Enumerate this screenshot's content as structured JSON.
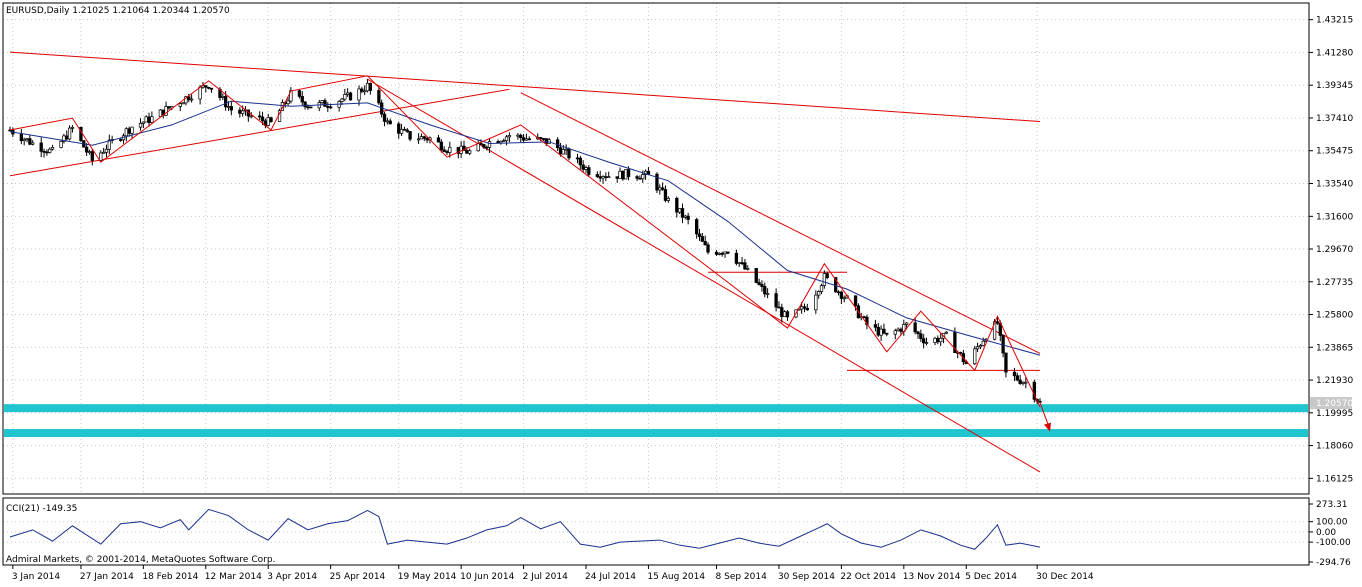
{
  "header": {
    "title": "EURUSD,Daily  1.21025 1.21064 1.20344 1.20570"
  },
  "price_axis": {
    "ticks": [
      "1.43215",
      "1.41280",
      "1.39345",
      "1.37410",
      "1.35475",
      "1.33540",
      "1.31600",
      "1.29670",
      "1.27735",
      "1.25800",
      "1.23865",
      "1.21930",
      "1.19995",
      "1.18060",
      "1.16125"
    ],
    "current_price_label": "1.20570"
  },
  "date_axis": {
    "ticks": [
      "3 Jan 2014",
      "27 Jan 2014",
      "18 Feb 2014",
      "12 Mar 2014",
      "3 Apr 2014",
      "25 Apr 2014",
      "19 May 2014",
      "10 Jun 2014",
      "2 Jul 2014",
      "24 Jul 2014",
      "15 Aug 2014",
      "8 Sep 2014",
      "30 Sep 2014",
      "22 Oct 2014",
      "13 Nov 2014",
      "5 Dec 2014",
      "30 Dec 2014"
    ]
  },
  "indicator": {
    "label": "CCI(21) -149.35",
    "ticks": [
      "273.31",
      "100.00",
      "0.00",
      "-100.00",
      "-294.76"
    ]
  },
  "copyright": "Admiral Markets, © 2001-2014, MetaQuotes Software Corp.",
  "colors": {
    "candle_up": "#ffffff",
    "candle_down": "#000000",
    "ma_line": "#1a2f8c",
    "trend_lines": "#e00000",
    "support_zones": "#1fc6d0",
    "cci_line": "#1a2f8c",
    "grid": "#c8c8c8"
  },
  "chart_data": {
    "type": "candlestick",
    "symbol": "EURUSD",
    "timeframe": "Daily",
    "last_bar": {
      "open": 1.21025,
      "high": 1.21064,
      "low": 1.20344,
      "close": 1.2057
    },
    "ylim": [
      1.152,
      1.442
    ],
    "x_range": [
      "2014-01-02",
      "2014-12-31"
    ],
    "grid": true,
    "close_series": [
      {
        "date": "2014-01-02",
        "close": 1.367
      },
      {
        "date": "2014-01-10",
        "close": 1.359
      },
      {
        "date": "2014-01-17",
        "close": 1.354
      },
      {
        "date": "2014-01-24",
        "close": 1.368
      },
      {
        "date": "2014-01-31",
        "close": 1.349
      },
      {
        "date": "2014-02-07",
        "close": 1.36
      },
      {
        "date": "2014-02-14",
        "close": 1.369
      },
      {
        "date": "2014-02-21",
        "close": 1.374
      },
      {
        "date": "2014-02-28",
        "close": 1.381
      },
      {
        "date": "2014-03-07",
        "close": 1.388
      },
      {
        "date": "2014-03-13",
        "close": 1.394
      },
      {
        "date": "2014-03-21",
        "close": 1.379
      },
      {
        "date": "2014-03-28",
        "close": 1.375
      },
      {
        "date": "2014-04-04",
        "close": 1.371
      },
      {
        "date": "2014-04-11",
        "close": 1.388
      },
      {
        "date": "2014-04-18",
        "close": 1.381
      },
      {
        "date": "2014-04-25",
        "close": 1.383
      },
      {
        "date": "2014-05-02",
        "close": 1.387
      },
      {
        "date": "2014-05-08",
        "close": 1.393
      },
      {
        "date": "2014-05-15",
        "close": 1.371
      },
      {
        "date": "2014-05-23",
        "close": 1.363
      },
      {
        "date": "2014-05-30",
        "close": 1.362
      },
      {
        "date": "2014-06-05",
        "close": 1.356
      },
      {
        "date": "2014-06-13",
        "close": 1.354
      },
      {
        "date": "2014-06-20",
        "close": 1.36
      },
      {
        "date": "2014-06-27",
        "close": 1.364
      },
      {
        "date": "2014-07-03",
        "close": 1.362
      },
      {
        "date": "2014-07-11",
        "close": 1.36
      },
      {
        "date": "2014-07-18",
        "close": 1.352
      },
      {
        "date": "2014-07-25",
        "close": 1.343
      },
      {
        "date": "2014-08-01",
        "close": 1.34
      },
      {
        "date": "2014-08-08",
        "close": 1.341
      },
      {
        "date": "2014-08-15",
        "close": 1.34
      },
      {
        "date": "2014-08-22",
        "close": 1.325
      },
      {
        "date": "2014-08-29",
        "close": 1.313
      },
      {
        "date": "2014-09-05",
        "close": 1.295
      },
      {
        "date": "2014-09-12",
        "close": 1.296
      },
      {
        "date": "2014-09-19",
        "close": 1.283
      },
      {
        "date": "2014-09-26",
        "close": 1.269
      },
      {
        "date": "2014-10-03",
        "close": 1.255
      },
      {
        "date": "2014-10-10",
        "close": 1.263
      },
      {
        "date": "2014-10-16",
        "close": 1.28
      },
      {
        "date": "2014-10-24",
        "close": 1.267
      },
      {
        "date": "2014-10-31",
        "close": 1.252
      },
      {
        "date": "2014-11-07",
        "close": 1.245
      },
      {
        "date": "2014-11-14",
        "close": 1.252
      },
      {
        "date": "2014-11-21",
        "close": 1.242
      },
      {
        "date": "2014-11-28",
        "close": 1.245
      },
      {
        "date": "2014-12-05",
        "close": 1.229
      },
      {
        "date": "2014-12-12",
        "close": 1.246
      },
      {
        "date": "2014-12-16",
        "close": 1.253
      },
      {
        "date": "2014-12-19",
        "close": 1.223
      },
      {
        "date": "2014-12-26",
        "close": 1.218
      },
      {
        "date": "2014-12-31",
        "close": 1.2057
      }
    ],
    "moving_average": [
      {
        "date": "2014-01-02",
        "value": 1.366
      },
      {
        "date": "2014-01-31",
        "value": 1.358
      },
      {
        "date": "2014-02-28",
        "value": 1.37
      },
      {
        "date": "2014-03-21",
        "value": 1.384
      },
      {
        "date": "2014-04-11",
        "value": 1.381
      },
      {
        "date": "2014-05-08",
        "value": 1.383
      },
      {
        "date": "2014-05-30",
        "value": 1.37
      },
      {
        "date": "2014-06-20",
        "value": 1.359
      },
      {
        "date": "2014-07-11",
        "value": 1.36
      },
      {
        "date": "2014-08-01",
        "value": 1.348
      },
      {
        "date": "2014-08-22",
        "value": 1.337
      },
      {
        "date": "2014-09-12",
        "value": 1.313
      },
      {
        "date": "2014-10-03",
        "value": 1.284
      },
      {
        "date": "2014-10-24",
        "value": 1.273
      },
      {
        "date": "2014-11-14",
        "value": 1.256
      },
      {
        "date": "2014-12-05",
        "value": 1.246
      },
      {
        "date": "2014-12-31",
        "value": 1.234
      }
    ],
    "zigzag": [
      {
        "date": "2014-01-02",
        "value": 1.367
      },
      {
        "date": "2014-01-24",
        "value": 1.374
      },
      {
        "date": "2014-02-03",
        "value": 1.348
      },
      {
        "date": "2014-03-13",
        "value": 1.396
      },
      {
        "date": "2014-04-04",
        "value": 1.367
      },
      {
        "date": "2014-04-11",
        "value": 1.39
      },
      {
        "date": "2014-05-08",
        "value": 1.399
      },
      {
        "date": "2014-06-05",
        "value": 1.351
      },
      {
        "date": "2014-07-01",
        "value": 1.37
      },
      {
        "date": "2014-09-05",
        "value": 1.286
      },
      {
        "date": "2014-10-03",
        "value": 1.25
      },
      {
        "date": "2014-10-16",
        "value": 1.288
      },
      {
        "date": "2014-11-07",
        "value": 1.236
      },
      {
        "date": "2014-11-19",
        "value": 1.26
      },
      {
        "date": "2014-12-08",
        "value": 1.225
      },
      {
        "date": "2014-12-16",
        "value": 1.257
      },
      {
        "date": "2014-12-31",
        "value": 1.2034
      }
    ],
    "trend_lines": [
      {
        "from": {
          "date": "2014-01-02",
          "value": 1.34
        },
        "to": {
          "date": "2014-06-27",
          "value": 1.391
        }
      },
      {
        "from": {
          "date": "2014-01-02",
          "value": 1.413
        },
        "to": {
          "date": "2014-12-31",
          "value": 1.372
        }
      },
      {
        "from": {
          "date": "2014-05-08",
          "value": 1.397
        },
        "to": {
          "date": "2014-12-31",
          "value": 1.165
        }
      },
      {
        "from": {
          "date": "2014-07-01",
          "value": 1.389
        },
        "to": {
          "date": "2014-12-31",
          "value": 1.235
        }
      },
      {
        "from": {
          "date": "2014-09-05",
          "value": 1.283
        },
        "to": {
          "date": "2014-10-24",
          "value": 1.283
        }
      },
      {
        "from": {
          "date": "2014-10-24",
          "value": 1.225
        },
        "to": {
          "date": "2014-12-31",
          "value": 1.225
        }
      }
    ],
    "projection_arrow": {
      "from": {
        "date": "2014-12-31",
        "value": 1.206
      },
      "to": {
        "date": "2014-12-31",
        "value": 1.19
      }
    },
    "support_zones": [
      1.2027,
      1.188
    ],
    "cci": {
      "period": 21,
      "last": -149.35,
      "ylim": [
        -294.76,
        273.31
      ],
      "levels": [
        100,
        0,
        -100
      ],
      "points": [
        {
          "date": "2014-01-02",
          "value": -50
        },
        {
          "date": "2014-01-10",
          "value": 20
        },
        {
          "date": "2014-01-17",
          "value": -90
        },
        {
          "date": "2014-01-24",
          "value": 60
        },
        {
          "date": "2014-02-03",
          "value": -120
        },
        {
          "date": "2014-02-10",
          "value": 80
        },
        {
          "date": "2014-02-17",
          "value": 100
        },
        {
          "date": "2014-02-24",
          "value": 40
        },
        {
          "date": "2014-03-03",
          "value": 120
        },
        {
          "date": "2014-03-06",
          "value": 20
        },
        {
          "date": "2014-03-13",
          "value": 220
        },
        {
          "date": "2014-03-20",
          "value": 160
        },
        {
          "date": "2014-03-27",
          "value": 20
        },
        {
          "date": "2014-04-03",
          "value": -80
        },
        {
          "date": "2014-04-10",
          "value": 130
        },
        {
          "date": "2014-04-17",
          "value": 20
        },
        {
          "date": "2014-04-24",
          "value": 80
        },
        {
          "date": "2014-05-01",
          "value": 110
        },
        {
          "date": "2014-05-08",
          "value": 210
        },
        {
          "date": "2014-05-12",
          "value": 150
        },
        {
          "date": "2014-05-15",
          "value": -120
        },
        {
          "date": "2014-05-22",
          "value": -80
        },
        {
          "date": "2014-05-29",
          "value": -100
        },
        {
          "date": "2014-06-05",
          "value": -120
        },
        {
          "date": "2014-06-12",
          "value": -60
        },
        {
          "date": "2014-06-19",
          "value": 20
        },
        {
          "date": "2014-06-26",
          "value": 60
        },
        {
          "date": "2014-07-01",
          "value": 140
        },
        {
          "date": "2014-07-08",
          "value": 30
        },
        {
          "date": "2014-07-15",
          "value": 100
        },
        {
          "date": "2014-07-22",
          "value": -120
        },
        {
          "date": "2014-07-29",
          "value": -150
        },
        {
          "date": "2014-08-05",
          "value": -100
        },
        {
          "date": "2014-08-12",
          "value": -90
        },
        {
          "date": "2014-08-19",
          "value": -80
        },
        {
          "date": "2014-08-26",
          "value": -130
        },
        {
          "date": "2014-09-02",
          "value": -160
        },
        {
          "date": "2014-09-09",
          "value": -110
        },
        {
          "date": "2014-09-16",
          "value": -60
        },
        {
          "date": "2014-09-23",
          "value": -110
        },
        {
          "date": "2014-09-30",
          "value": -140
        },
        {
          "date": "2014-10-07",
          "value": -50
        },
        {
          "date": "2014-10-14",
          "value": 40
        },
        {
          "date": "2014-10-17",
          "value": 80
        },
        {
          "date": "2014-10-22",
          "value": -20
        },
        {
          "date": "2014-10-29",
          "value": -110
        },
        {
          "date": "2014-11-05",
          "value": -150
        },
        {
          "date": "2014-11-12",
          "value": -80
        },
        {
          "date": "2014-11-19",
          "value": 20
        },
        {
          "date": "2014-11-26",
          "value": -40
        },
        {
          "date": "2014-12-03",
          "value": -130
        },
        {
          "date": "2014-12-08",
          "value": -170
        },
        {
          "date": "2014-12-12",
          "value": -60
        },
        {
          "date": "2014-12-16",
          "value": 70
        },
        {
          "date": "2014-12-19",
          "value": -130
        },
        {
          "date": "2014-12-24",
          "value": -110
        },
        {
          "date": "2014-12-31",
          "value": -149.35
        }
      ]
    }
  }
}
